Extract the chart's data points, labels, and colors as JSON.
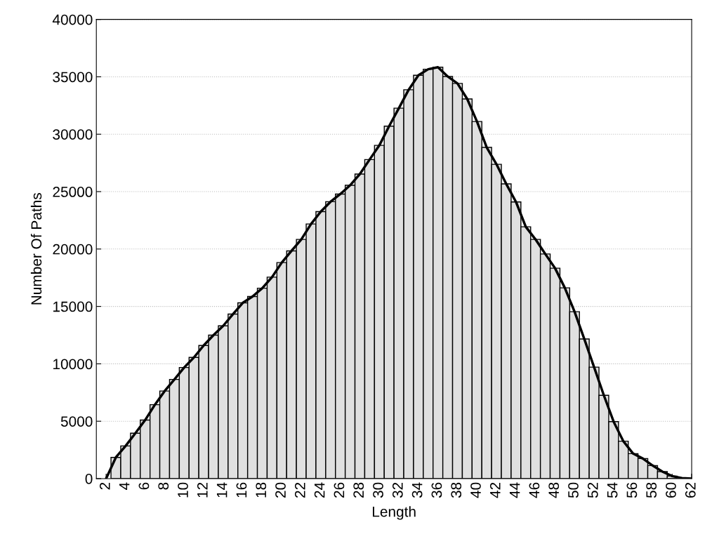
{
  "chart_data": {
    "type": "histogram",
    "xlabel": "Length",
    "ylabel": "Number Of Paths",
    "series": [
      {
        "color": "#e0e0e0",
        "bins": [
          2.5,
          3.5,
          4.5,
          5.5,
          6.5,
          7.5,
          8.5,
          9.5,
          10.5,
          11.5,
          12.5,
          13.5,
          14.5,
          15.5,
          16.5,
          17.5,
          18.5,
          19.5,
          20.5,
          21.5,
          22.5,
          23.5,
          24.5,
          25.5,
          26.5,
          27.5,
          28.5,
          29.5,
          30.5,
          31.5,
          32.5,
          33.5,
          34.5,
          35.5,
          36.5,
          37.5,
          38.5,
          39.5,
          40.5,
          41.5,
          42.5,
          43.5,
          44.5,
          45.5,
          46.5,
          47.5,
          48.5,
          49.5,
          50.5,
          51.5,
          52.5,
          53.5,
          54.5,
          55.5,
          56.5,
          57.5,
          58.5,
          59.5,
          60.5
        ],
        "values": [
          1850,
          2850,
          3960,
          5100,
          6440,
          7630,
          8640,
          9680,
          10560,
          11600,
          12500,
          13310,
          14330,
          15310,
          15860,
          16590,
          17550,
          18820,
          19840,
          20840,
          22180,
          23260,
          24120,
          24790,
          25550,
          26530,
          27790,
          29030,
          30700,
          32270,
          33870,
          35130,
          35660,
          35840,
          35030,
          34420,
          33070,
          31110,
          28850,
          27380,
          25670,
          24100,
          21940,
          20840,
          19570,
          18330,
          16620,
          14540,
          12160,
          9710,
          7260,
          4970,
          3260,
          2180,
          1750,
          1140,
          610,
          220
        ]
      },
      {
        "type": "line",
        "color": "#000000",
        "x": [
          2,
          3,
          4,
          5,
          6,
          7,
          8,
          9,
          10,
          11,
          12,
          13,
          14,
          15,
          16,
          17,
          18,
          19,
          20,
          21,
          22,
          23,
          24,
          25,
          26,
          27,
          28,
          29,
          30,
          31,
          32,
          33,
          34,
          35,
          36,
          37,
          38,
          39,
          40,
          41,
          42,
          43,
          44,
          45,
          46,
          47,
          48,
          49,
          50,
          51,
          52,
          53,
          54,
          55,
          56,
          57,
          58,
          59,
          60,
          61,
          62
        ],
        "values": [
          0,
          1850,
          2850,
          3960,
          5100,
          6440,
          7630,
          8640,
          9680,
          10560,
          11600,
          12500,
          13310,
          14330,
          15310,
          15860,
          16590,
          17550,
          18820,
          19840,
          20840,
          22180,
          23260,
          24120,
          24790,
          25550,
          26530,
          27790,
          29030,
          30700,
          32270,
          33870,
          35130,
          35660,
          35840,
          35030,
          34420,
          33070,
          31110,
          28850,
          27380,
          25670,
          24100,
          21940,
          20840,
          19570,
          18330,
          16620,
          14540,
          12160,
          9710,
          7260,
          4970,
          3260,
          2180,
          1750,
          1140,
          610,
          220,
          50,
          0
        ]
      }
    ],
    "xlim": [
      1,
      62
    ],
    "ylim": [
      0,
      40000
    ],
    "xticks": [
      2,
      4,
      6,
      8,
      10,
      12,
      14,
      16,
      18,
      20,
      22,
      24,
      26,
      28,
      30,
      32,
      34,
      36,
      38,
      40,
      42,
      44,
      46,
      48,
      50,
      52,
      54,
      56,
      58,
      60,
      62
    ],
    "yticks": [
      0,
      5000,
      10000,
      15000,
      20000,
      25000,
      30000,
      35000,
      40000
    ],
    "grid": "y",
    "line_style": "solid"
  }
}
